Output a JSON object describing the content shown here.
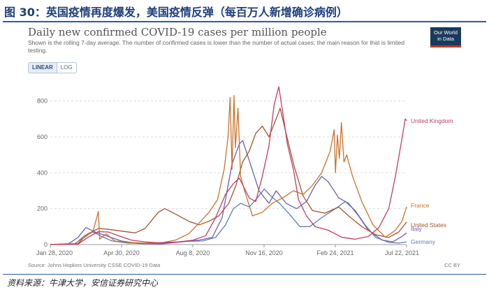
{
  "figure": {
    "title": "图 30：英国疫情再度爆发，美国疫情反弹（每百万人新增确诊病例）",
    "source": "资料来源：牛津大学，安信证券研究中心"
  },
  "owid": {
    "logo_line1": "Our World",
    "logo_line2": "in Data",
    "toggle": {
      "linear": "LINEAR",
      "log": "LOG"
    },
    "chart_source": "Source: Johns Hopkins University CSSE COVID-19 Data",
    "license": "CC BY"
  },
  "colors": {
    "United Kingdom": "#c43c6b",
    "France": "#c8742c",
    "United States": "#a5562e",
    "Italy": "#6b5fb0",
    "Germany": "#5e7fb4"
  },
  "chart_data": {
    "type": "line",
    "title": "Daily new confirmed COVID-19 cases per million people",
    "subtitle": "Shown is the rolling 7-day average. The number of confirmed cases is lower than the number of actual cases; the main reason for that is limited testing.",
    "xlabel": "",
    "ylabel": "",
    "x_range": [
      "2020-01-28",
      "2021-07-22"
    ],
    "ylim": [
      0,
      880
    ],
    "y_ticks": [
      0,
      200,
      400,
      600,
      800
    ],
    "x_tick_labels": [
      "Jan 28, 2020",
      "Apr 30, 2020",
      "Aug 8, 2020",
      "Nov 16, 2020",
      "Feb 24, 2021",
      "Jul 22, 2021"
    ],
    "grid": true,
    "legend": "right end labels",
    "series": [
      {
        "name": "United Kingdom",
        "points": [
          [
            "2020-01-28",
            0
          ],
          [
            "2020-03-10",
            2
          ],
          [
            "2020-03-25",
            40
          ],
          [
            "2020-04-10",
            72
          ],
          [
            "2020-04-25",
            70
          ],
          [
            "2020-05-10",
            50
          ],
          [
            "2020-05-30",
            25
          ],
          [
            "2020-06-20",
            15
          ],
          [
            "2020-07-10",
            10
          ],
          [
            "2020-08-10",
            15
          ],
          [
            "2020-09-01",
            25
          ],
          [
            "2020-09-20",
            50
          ],
          [
            "2020-10-05",
            150
          ],
          [
            "2020-10-20",
            280
          ],
          [
            "2020-11-01",
            340
          ],
          [
            "2020-11-10",
            370
          ],
          [
            "2020-11-25",
            260
          ],
          [
            "2020-12-05",
            240
          ],
          [
            "2020-12-15",
            380
          ],
          [
            "2020-12-25",
            550
          ],
          [
            "2021-01-02",
            780
          ],
          [
            "2021-01-09",
            880
          ],
          [
            "2021-01-14",
            760
          ],
          [
            "2021-01-22",
            560
          ],
          [
            "2021-01-31",
            420
          ],
          [
            "2021-02-08",
            250
          ],
          [
            "2021-02-20",
            160
          ],
          [
            "2021-03-05",
            100
          ],
          [
            "2021-03-25",
            80
          ],
          [
            "2021-04-15",
            40
          ],
          [
            "2021-05-05",
            30
          ],
          [
            "2021-05-25",
            45
          ],
          [
            "2021-06-10",
            95
          ],
          [
            "2021-06-25",
            200
          ],
          [
            "2021-07-05",
            380
          ],
          [
            "2021-07-15",
            590
          ],
          [
            "2021-07-20",
            700
          ],
          [
            "2021-07-22",
            690
          ]
        ]
      },
      {
        "name": "France",
        "points": [
          [
            "2020-01-28",
            0
          ],
          [
            "2020-03-05",
            5
          ],
          [
            "2020-03-20",
            40
          ],
          [
            "2020-04-02",
            75
          ],
          [
            "2020-04-10",
            185
          ],
          [
            "2020-04-12",
            30
          ],
          [
            "2020-04-22",
            60
          ],
          [
            "2020-05-05",
            20
          ],
          [
            "2020-05-25",
            12
          ],
          [
            "2020-06-20",
            8
          ],
          [
            "2020-07-15",
            10
          ],
          [
            "2020-08-05",
            25
          ],
          [
            "2020-08-25",
            60
          ],
          [
            "2020-09-10",
            120
          ],
          [
            "2020-09-25",
            180
          ],
          [
            "2020-10-08",
            250
          ],
          [
            "2020-10-18",
            420
          ],
          [
            "2020-10-24",
            600
          ],
          [
            "2020-10-27",
            820
          ],
          [
            "2020-10-30",
            420
          ],
          [
            "2020-11-02",
            830
          ],
          [
            "2020-11-04",
            540
          ],
          [
            "2020-11-08",
            760
          ],
          [
            "2020-11-12",
            380
          ],
          [
            "2020-11-18",
            300
          ],
          [
            "2020-11-30",
            160
          ],
          [
            "2020-12-15",
            180
          ],
          [
            "2020-12-30",
            230
          ],
          [
            "2021-01-15",
            260
          ],
          [
            "2021-01-31",
            300
          ],
          [
            "2021-02-15",
            280
          ],
          [
            "2021-03-01",
            330
          ],
          [
            "2021-03-15",
            400
          ],
          [
            "2021-03-28",
            520
          ],
          [
            "2021-04-03",
            640
          ],
          [
            "2021-04-05",
            400
          ],
          [
            "2021-04-08",
            610
          ],
          [
            "2021-04-11",
            480
          ],
          [
            "2021-04-14",
            680
          ],
          [
            "2021-04-18",
            460
          ],
          [
            "2021-04-22",
            500
          ],
          [
            "2021-05-01",
            380
          ],
          [
            "2021-05-15",
            240
          ],
          [
            "2021-06-01",
            110
          ],
          [
            "2021-06-20",
            40
          ],
          [
            "2021-07-05",
            80
          ],
          [
            "2021-07-15",
            130
          ],
          [
            "2021-07-22",
            210
          ]
        ]
      },
      {
        "name": "United States",
        "points": [
          [
            "2020-01-28",
            0
          ],
          [
            "2020-03-10",
            5
          ],
          [
            "2020-03-25",
            60
          ],
          [
            "2020-04-10",
            90
          ],
          [
            "2020-04-25",
            85
          ],
          [
            "2020-05-15",
            75
          ],
          [
            "2020-06-05",
            65
          ],
          [
            "2020-06-20",
            90
          ],
          [
            "2020-07-10",
            180
          ],
          [
            "2020-07-20",
            200
          ],
          [
            "2020-08-05",
            170
          ],
          [
            "2020-08-25",
            130
          ],
          [
            "2020-09-10",
            110
          ],
          [
            "2020-09-25",
            130
          ],
          [
            "2020-10-10",
            160
          ],
          [
            "2020-10-25",
            230
          ],
          [
            "2020-11-05",
            330
          ],
          [
            "2020-11-15",
            460
          ],
          [
            "2020-11-25",
            520
          ],
          [
            "2020-12-05",
            620
          ],
          [
            "2020-12-15",
            660
          ],
          [
            "2020-12-25",
            600
          ],
          [
            "2021-01-05",
            700
          ],
          [
            "2021-01-11",
            760
          ],
          [
            "2021-01-20",
            620
          ],
          [
            "2021-02-01",
            440
          ],
          [
            "2021-02-15",
            270
          ],
          [
            "2021-03-01",
            190
          ],
          [
            "2021-03-20",
            175
          ],
          [
            "2021-04-10",
            210
          ],
          [
            "2021-04-25",
            160
          ],
          [
            "2021-05-15",
            100
          ],
          [
            "2021-06-05",
            55
          ],
          [
            "2021-06-25",
            40
          ],
          [
            "2021-07-10",
            70
          ],
          [
            "2021-07-22",
            125
          ]
        ]
      },
      {
        "name": "Italy",
        "points": [
          [
            "2020-01-28",
            0
          ],
          [
            "2020-02-25",
            5
          ],
          [
            "2020-03-10",
            40
          ],
          [
            "2020-03-22",
            95
          ],
          [
            "2020-04-05",
            70
          ],
          [
            "2020-04-25",
            45
          ],
          [
            "2020-05-15",
            20
          ],
          [
            "2020-06-10",
            6
          ],
          [
            "2020-07-15",
            4
          ],
          [
            "2020-08-15",
            15
          ],
          [
            "2020-09-10",
            25
          ],
          [
            "2020-09-30",
            40
          ],
          [
            "2020-10-15",
            150
          ],
          [
            "2020-10-30",
            450
          ],
          [
            "2020-11-10",
            560
          ],
          [
            "2020-11-15",
            580
          ],
          [
            "2020-11-25",
            470
          ],
          [
            "2020-12-10",
            300
          ],
          [
            "2020-12-25",
            230
          ],
          [
            "2021-01-05",
            300
          ],
          [
            "2021-01-20",
            230
          ],
          [
            "2021-02-05",
            200
          ],
          [
            "2021-02-20",
            240
          ],
          [
            "2021-03-05",
            330
          ],
          [
            "2021-03-15",
            380
          ],
          [
            "2021-03-25",
            350
          ],
          [
            "2021-04-10",
            260
          ],
          [
            "2021-04-25",
            230
          ],
          [
            "2021-05-10",
            160
          ],
          [
            "2021-05-25",
            80
          ],
          [
            "2021-06-15",
            25
          ],
          [
            "2021-07-01",
            15
          ],
          [
            "2021-07-15",
            45
          ],
          [
            "2021-07-22",
            65
          ]
        ]
      },
      {
        "name": "Germany",
        "points": [
          [
            "2020-01-28",
            0
          ],
          [
            "2020-03-05",
            2
          ],
          [
            "2020-03-20",
            50
          ],
          [
            "2020-04-02",
            70
          ],
          [
            "2020-04-15",
            45
          ],
          [
            "2020-05-01",
            20
          ],
          [
            "2020-05-25",
            8
          ],
          [
            "2020-06-20",
            6
          ],
          [
            "2020-07-20",
            7
          ],
          [
            "2020-08-20",
            18
          ],
          [
            "2020-09-15",
            20
          ],
          [
            "2020-10-05",
            40
          ],
          [
            "2020-10-20",
            110
          ],
          [
            "2020-11-01",
            200
          ],
          [
            "2020-11-12",
            230
          ],
          [
            "2020-11-25",
            210
          ],
          [
            "2020-12-05",
            250
          ],
          [
            "2020-12-18",
            310
          ],
          [
            "2020-12-28",
            270
          ],
          [
            "2021-01-10",
            230
          ],
          [
            "2021-01-25",
            170
          ],
          [
            "2021-02-10",
            100
          ],
          [
            "2021-02-25",
            100
          ],
          [
            "2021-03-15",
            150
          ],
          [
            "2021-04-05",
            200
          ],
          [
            "2021-04-20",
            240
          ],
          [
            "2021-05-05",
            190
          ],
          [
            "2021-05-20",
            110
          ],
          [
            "2021-06-05",
            40
          ],
          [
            "2021-06-25",
            12
          ],
          [
            "2021-07-10",
            8
          ],
          [
            "2021-07-22",
            15
          ]
        ]
      }
    ]
  }
}
